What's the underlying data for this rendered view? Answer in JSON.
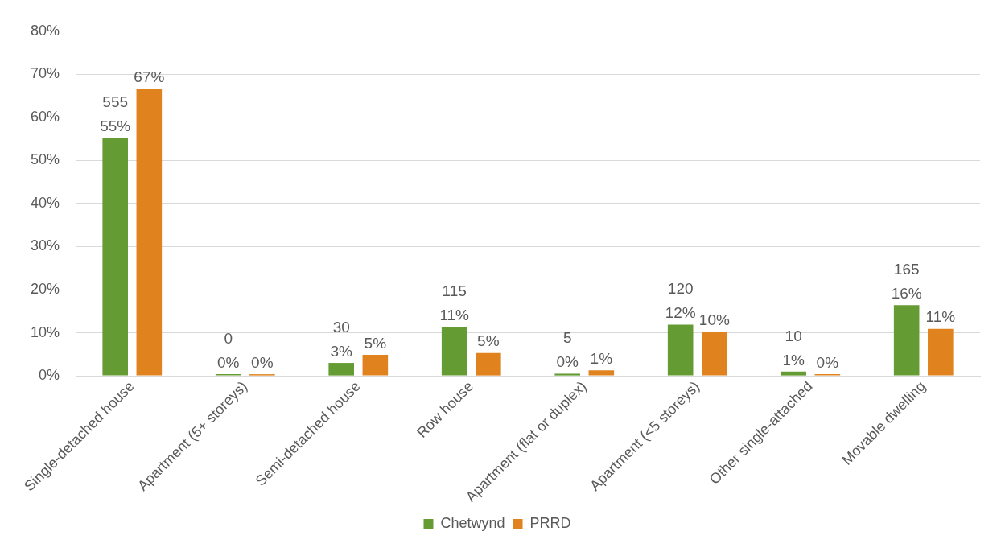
{
  "chart_data": {
    "type": "bar",
    "categories": [
      "Single-detached house",
      "Apartment (5+ storeys)",
      "Semi-detached house",
      "Row house",
      "Apartment (flat or duplex)",
      "Apartment (<5 storeys)",
      "Other single-attached",
      "Movable dwelling"
    ],
    "series": [
      {
        "name": "Chetwynd",
        "color": "#659b33",
        "values": [
          55.2,
          0,
          3,
          11.4,
          0.5,
          11.9,
          1,
          16.4
        ],
        "value_labels": [
          "555\n55%",
          "0\n0%",
          "30\n3%",
          "115\n11%",
          "5\n0%",
          "120\n12%",
          "10\n1%",
          "165\n16%"
        ]
      },
      {
        "name": "PRRD",
        "color": "#e0831f",
        "values": [
          66.7,
          0.3,
          4.9,
          5.3,
          1.3,
          10.3,
          0,
          10.9
        ],
        "value_labels": [
          "67%",
          "0%",
          "5%",
          "5%",
          "1%",
          "10%",
          "0%",
          "11%"
        ]
      }
    ],
    "ylim": [
      0,
      80
    ],
    "yticks": [
      {
        "value": 0,
        "label": "0%"
      },
      {
        "value": 10,
        "label": "10%"
      },
      {
        "value": 20,
        "label": "20%"
      },
      {
        "value": 30,
        "label": "30%"
      },
      {
        "value": 40,
        "label": "40%"
      },
      {
        "value": 50,
        "label": "50%"
      },
      {
        "value": 60,
        "label": "60%"
      },
      {
        "value": 70,
        "label": "70%"
      },
      {
        "value": 80,
        "label": "80%"
      }
    ],
    "grid": "y",
    "legend": "bottom"
  }
}
